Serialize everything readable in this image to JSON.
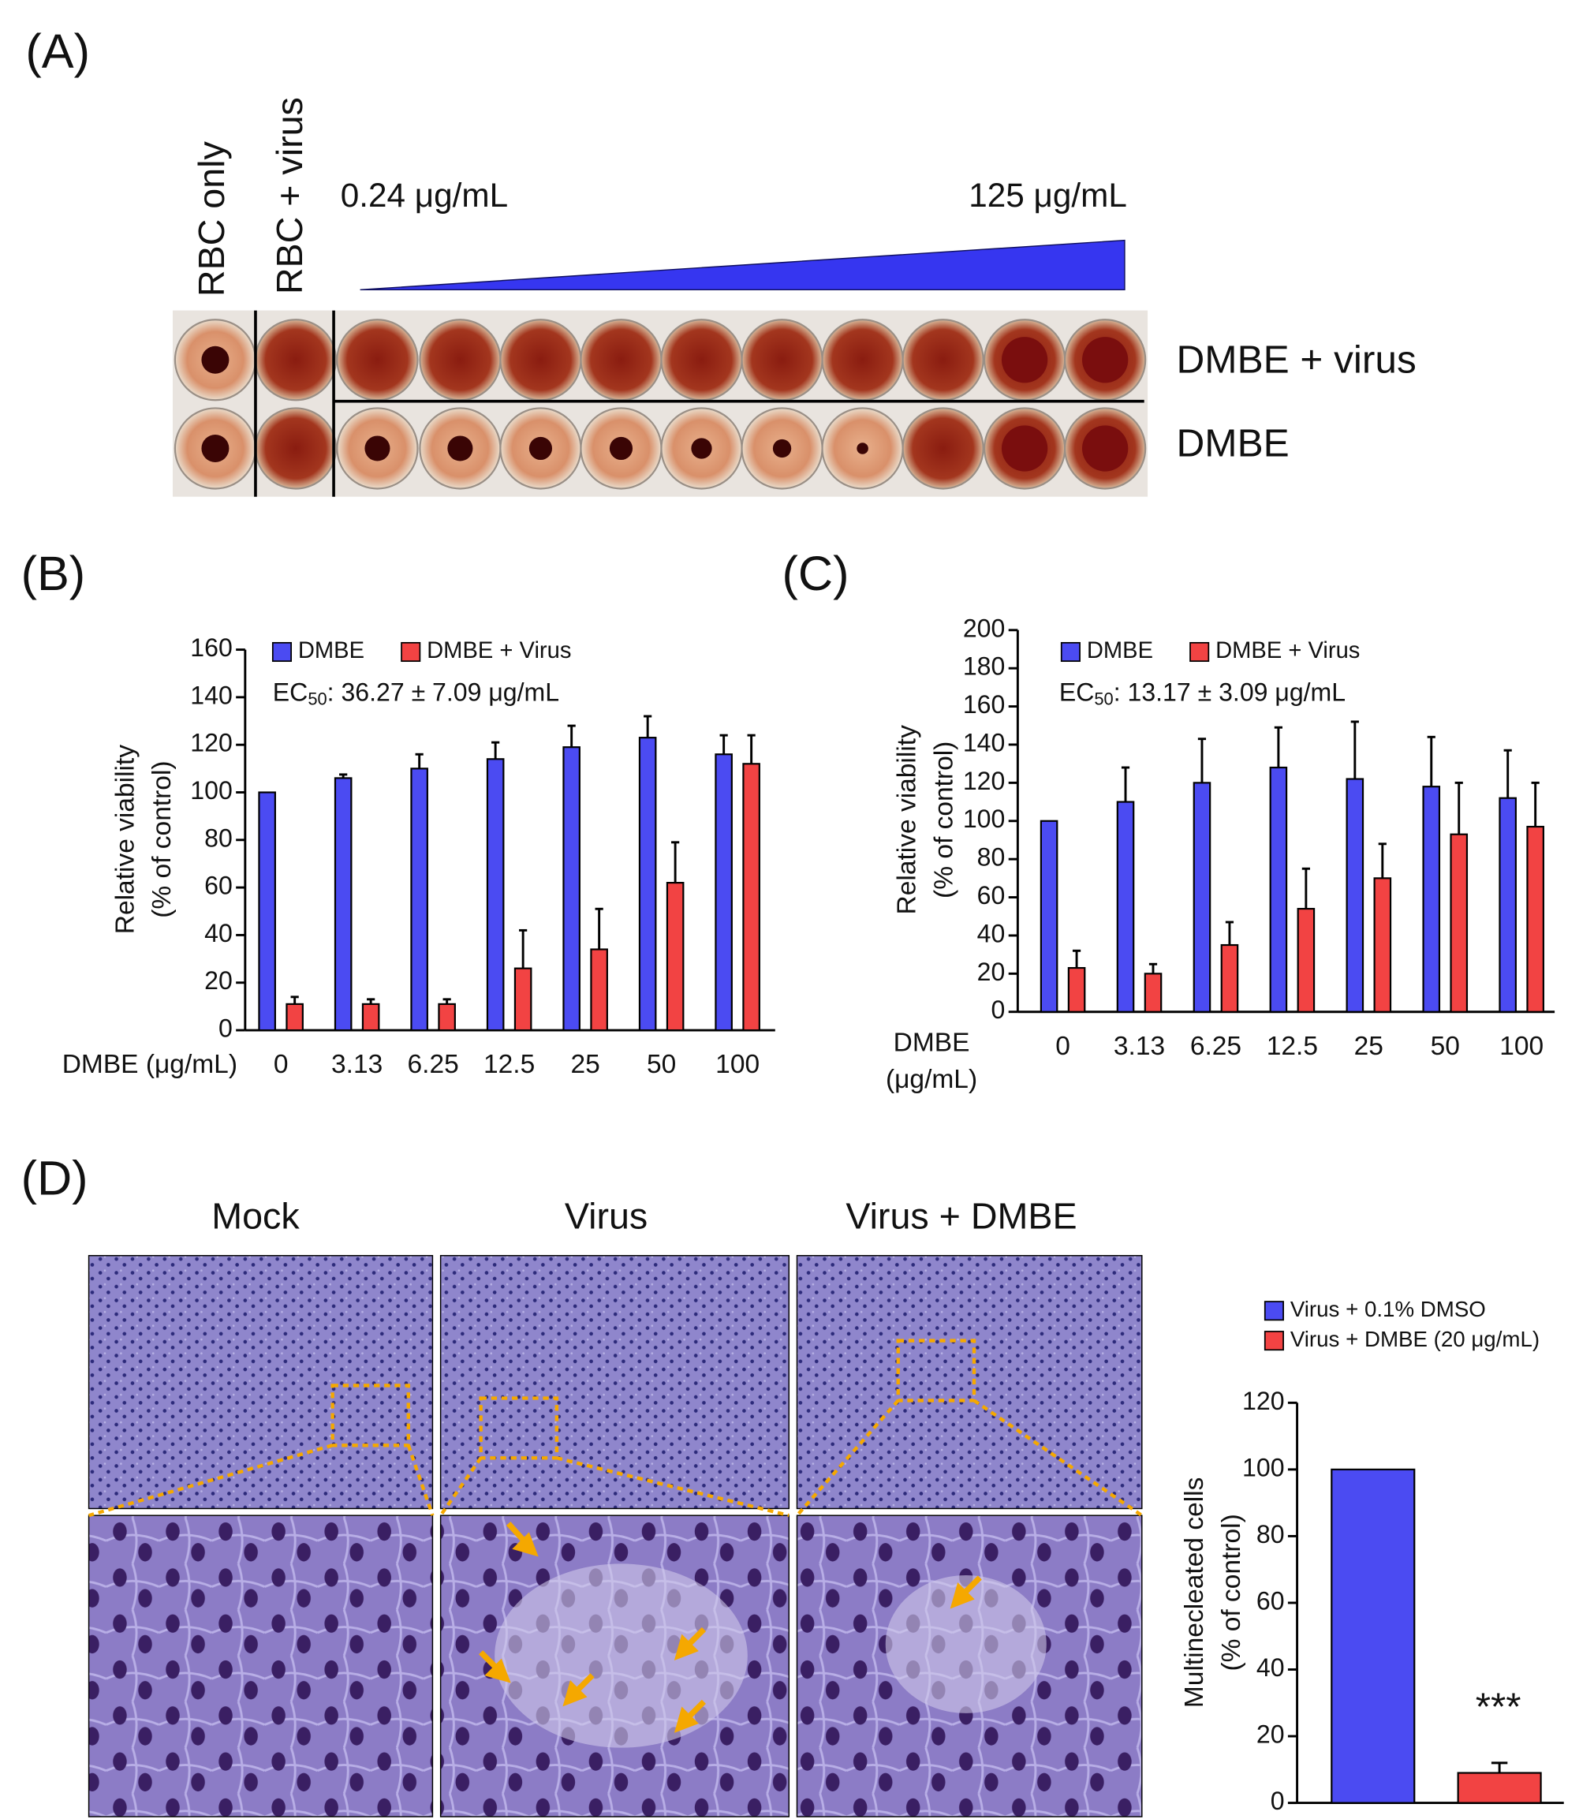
{
  "panel_labels": [
    "(A)",
    "(B)",
    "(C)",
    "(D)"
  ],
  "plate": {
    "column_labels": [
      "RBC only",
      "RBC + virus"
    ],
    "range_low": "0.24 μg/mL",
    "range_high": "125 μg/mL",
    "row_labels": [
      "DMBE + virus",
      "DMBE"
    ]
  },
  "micrographs": {
    "titles": [
      "Mock",
      "Virus",
      "Virus + DMBE"
    ]
  },
  "chart_data": [
    {
      "type": "bar",
      "ylabel": [
        "Relative viability",
        "(% of control)"
      ],
      "xlabel": [
        "DMBE (μg/mL)"
      ],
      "annotation": {
        "prefix": "EC",
        "sub": "50",
        "text": ": 36.27 ± 7.09 μg/mL"
      },
      "categories": [
        "0",
        "3.13",
        "6.25",
        "12.5",
        "25",
        "50",
        "100"
      ],
      "series": [
        {
          "name": "DMBE",
          "color": "#4b4bf2",
          "values": [
            100,
            106,
            110,
            114,
            119,
            123,
            116
          ],
          "errors": [
            0,
            1.5,
            6,
            7,
            9,
            9,
            8
          ]
        },
        {
          "name": "DMBE + Virus",
          "color": "#f24343",
          "values": [
            11,
            11,
            11,
            26,
            34,
            62,
            112
          ],
          "errors": [
            3,
            2,
            2,
            16,
            17,
            17,
            12
          ]
        }
      ],
      "ylim": [
        0,
        160
      ],
      "yticks": [
        0,
        20,
        40,
        60,
        80,
        100,
        120,
        140,
        160
      ]
    },
    {
      "type": "bar",
      "ylabel": [
        "Relative viability",
        "(% of control)"
      ],
      "xlabel": [
        "DMBE",
        "(μg/mL)"
      ],
      "annotation": {
        "prefix": "EC",
        "sub": "50",
        "text": ": 13.17 ± 3.09 μg/mL"
      },
      "categories": [
        "0",
        "3.13",
        "6.25",
        "12.5",
        "25",
        "50",
        "100"
      ],
      "series": [
        {
          "name": "DMBE",
          "color": "#4b4bf2",
          "values": [
            100,
            110,
            120,
            128,
            122,
            118,
            112
          ],
          "errors": [
            0,
            18,
            23,
            21,
            30,
            26,
            25
          ]
        },
        {
          "name": "DMBE + Virus",
          "color": "#f24343",
          "values": [
            23,
            20,
            35,
            54,
            70,
            93,
            97
          ],
          "errors": [
            9,
            5,
            12,
            21,
            18,
            27,
            23
          ]
        }
      ],
      "ylim": [
        0,
        200
      ],
      "yticks": [
        0,
        20,
        40,
        60,
        80,
        100,
        120,
        140,
        160,
        180,
        200
      ]
    },
    {
      "type": "bar",
      "ylabel": [
        "Multinecleated cells",
        "(% of control)"
      ],
      "annotation": {
        "text": "***"
      },
      "categories": [
        null
      ],
      "series": [
        {
          "name": "Virus + 0.1% DMSO",
          "color": "#4b4bf2",
          "values": [
            100
          ],
          "errors": [
            0
          ]
        },
        {
          "name": "Virus + DMBE (20 μg/mL)",
          "color": "#f24343",
          "values": [
            9
          ],
          "errors": [
            3
          ]
        }
      ],
      "ylim": [
        0,
        120
      ],
      "yticks": [
        0,
        20,
        40,
        60,
        80,
        100,
        120
      ]
    }
  ]
}
